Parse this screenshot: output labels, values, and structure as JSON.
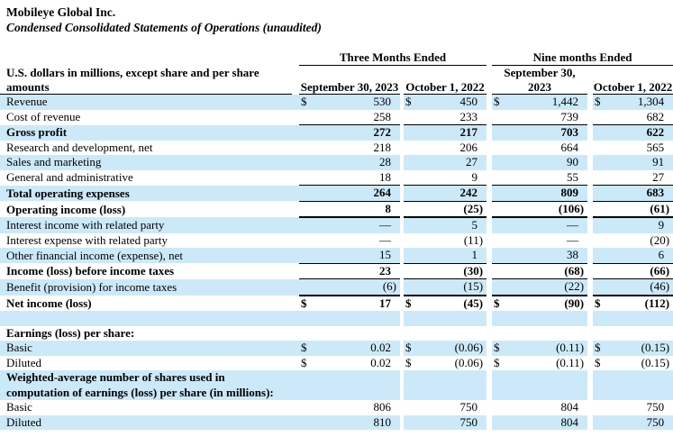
{
  "header": {
    "company": "Mobileye Global Inc.",
    "statement_title": "Condensed Consolidated Statements of Operations (unaudited)"
  },
  "colors": {
    "row_shade": "#cce9f9",
    "text": "#000000",
    "rule": "#000000"
  },
  "table": {
    "row_label_header": "U.S. dollars in millions, except share and per share amounts",
    "col_groups": [
      {
        "label": "Three Months Ended",
        "columns": [
          "September 30, 2023",
          "October 1, 2022"
        ]
      },
      {
        "label": "Nine months Ended",
        "columns": [
          "September 30, 2023",
          "October 1, 2022"
        ]
      }
    ],
    "currency_symbol": "$",
    "rows": [
      {
        "label": "Revenue",
        "shade": true,
        "dollar": true,
        "values": [
          "530",
          "450",
          "1,442",
          "1,304"
        ]
      },
      {
        "label": "Cost of revenue",
        "values": [
          "258",
          "233",
          "739",
          "682"
        ],
        "underline": "thin"
      },
      {
        "label": "Gross profit",
        "bold": true,
        "shade": true,
        "values": [
          "272",
          "217",
          "703",
          "622"
        ]
      },
      {
        "label": "Research and development, net",
        "values": [
          "218",
          "206",
          "664",
          "565"
        ]
      },
      {
        "label": "Sales and marketing",
        "shade": true,
        "values": [
          "28",
          "27",
          "90",
          "91"
        ]
      },
      {
        "label": "General and administrative",
        "values": [
          "18",
          "9",
          "55",
          "27"
        ],
        "underline": "thin"
      },
      {
        "label": "Total operating expenses",
        "bold": true,
        "shade": true,
        "values": [
          "264",
          "242",
          "809",
          "683"
        ],
        "underline": "thin"
      },
      {
        "label": "Operating income (loss)",
        "bold": true,
        "values": [
          "8",
          "(25)",
          "(106)",
          "(61)"
        ],
        "underline": "thick"
      },
      {
        "label": "Interest income with related party",
        "shade": true,
        "values": [
          "—",
          "5",
          "—",
          "9"
        ]
      },
      {
        "label": "Interest expense with related party",
        "values": [
          "—",
          "(11)",
          "—",
          "(20)"
        ]
      },
      {
        "label": "Other financial income (expense), net",
        "shade": true,
        "values": [
          "15",
          "1",
          "38",
          "6"
        ],
        "underline": "thin"
      },
      {
        "label": "Income (loss) before income taxes",
        "bold": true,
        "values": [
          "23",
          "(30)",
          "(68)",
          "(66)"
        ],
        "underline": "thin"
      },
      {
        "label": "Benefit (provision) for income taxes",
        "shade": true,
        "values": [
          "(6)",
          "(15)",
          "(22)",
          "(46)"
        ],
        "underline": "thick2"
      },
      {
        "label": "Net income (loss)",
        "bold": true,
        "dollar": true,
        "values": [
          "17",
          "(45)",
          "(90)",
          "(112)"
        ]
      },
      {
        "spacer": true,
        "shade": true
      },
      {
        "label": "Earnings (loss) per share:",
        "bold": true
      },
      {
        "label": "Basic",
        "shade": true,
        "dollar": true,
        "values": [
          "0.02",
          "(0.06)",
          "(0.11)",
          "(0.15)"
        ]
      },
      {
        "label": "Diluted",
        "dollar": true,
        "values": [
          "0.02",
          "(0.06)",
          "(0.11)",
          "(0.15)"
        ]
      },
      {
        "label": "Weighted-average number of shares used in",
        "label2": "computation of earnings (loss) per share (in millions):",
        "bold": true,
        "shade": true
      },
      {
        "label": "Basic",
        "values": [
          "806",
          "750",
          "804",
          "750"
        ]
      },
      {
        "label": "Diluted",
        "shade": true,
        "values": [
          "810",
          "750",
          "804",
          "750"
        ]
      }
    ]
  }
}
